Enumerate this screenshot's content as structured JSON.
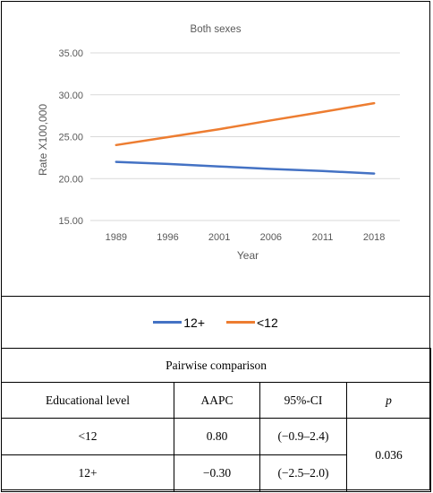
{
  "chart_data": {
    "type": "line",
    "title": "Both sexes",
    "xlabel": "Year",
    "ylabel": "Rate X100,000",
    "categories": [
      "1989",
      "1996",
      "2001",
      "2006",
      "2011",
      "2018"
    ],
    "ylim": [
      15,
      35
    ],
    "yticks": [
      "15.00",
      "20.00",
      "25.00",
      "30.00",
      "35.00"
    ],
    "grid": true,
    "legend": "bottom",
    "series": [
      {
        "name": "12+",
        "color": "#4472c4",
        "values": [
          22.0,
          21.75,
          21.45,
          21.15,
          20.9,
          20.6
        ]
      },
      {
        "name": "<12",
        "color": "#ed7d31",
        "values": [
          24.0,
          24.95,
          25.9,
          26.95,
          27.95,
          29.0
        ]
      }
    ]
  },
  "table": {
    "caption": "Pairwise comparison",
    "headers": [
      "Educational level",
      "AAPC",
      "95%-CI",
      "p"
    ],
    "rows": [
      {
        "level": "<12",
        "aapc": "0.80",
        "ci": "(−0.9–2.4)"
      },
      {
        "level": "12+",
        "aapc": "−0.30",
        "ci": "(−2.5–2.0)"
      }
    ],
    "p_value": "0.036"
  }
}
